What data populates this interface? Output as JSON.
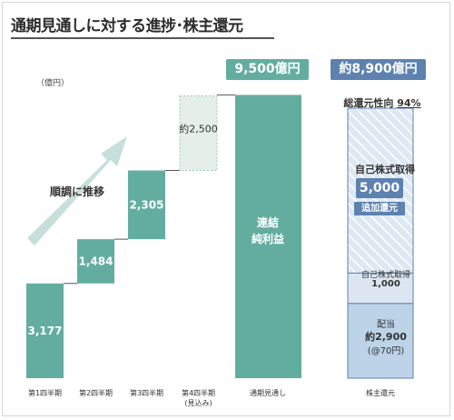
{
  "title": "通期見通しに対する進捗･株主還元",
  "unit": "（億円）",
  "trend_label": "順調に推移",
  "full_year_header": "9,500億円",
  "return_header": "約8,900億円",
  "payout": {
    "label": "総還元性向",
    "value": "94%"
  },
  "net_income_label_1": "連結",
  "net_income_label_2": "純利益",
  "buyback_additional": {
    "label": "自己株式取得",
    "value": "5,000",
    "tag": "追加還元"
  },
  "buyback_base": {
    "label": "自己株式取得",
    "value": "1,000"
  },
  "dividend": {
    "label": "配当",
    "value": "約2,900",
    "sub": "(@70円)"
  },
  "x_labels": [
    "第1四半期",
    "第2四半期",
    "第3四半期",
    "第4四半期",
    "通期見通し",
    "株主還元"
  ],
  "x_label_q4_sub": "(見込み)",
  "colors": {
    "teal": "#63ada0",
    "teal_light": "#e4efe9",
    "blue_light": "#bcd3e8",
    "blue": "#5d82b0",
    "arrow": "#c6dfdb"
  },
  "chart_data": {
    "type": "bar",
    "subtype": "waterfall",
    "categories": [
      "第1四半期",
      "第2四半期",
      "第3四半期",
      "第4四半期(見込み)",
      "通期見通し",
      "株主還元"
    ],
    "series": [
      {
        "values": [
          3177,
          1484,
          2305,
          2500,
          9500,
          null
        ],
        "labels": [
          "3,177",
          "1,484",
          "2,305",
          "約2,500",
          "",
          ""
        ]
      }
    ],
    "shareholder_return_stack": [
      {
        "name": "配当",
        "value": 2900
      },
      {
        "name": "自己株式取得",
        "value": 1000
      },
      {
        "name": "自己株式取得(追加還元)",
        "value": 5000
      }
    ],
    "total_return": 8900,
    "payout_ratio": "94%",
    "ylabel": "（億円）"
  }
}
